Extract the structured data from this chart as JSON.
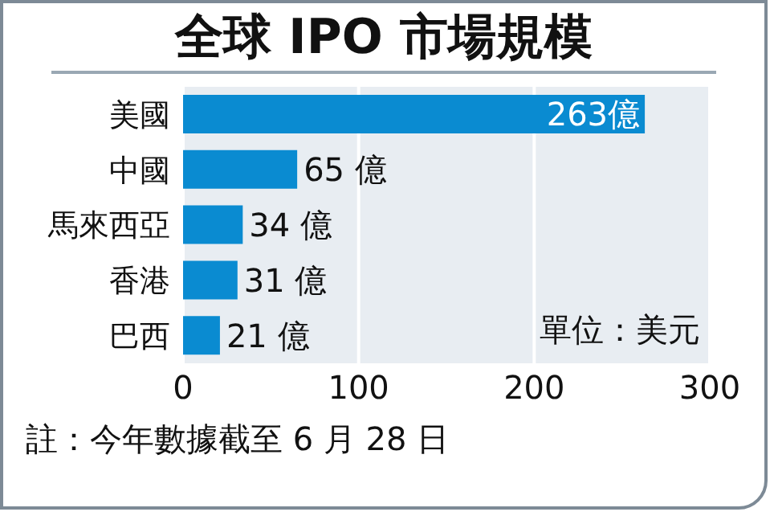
{
  "chart_data": {
    "type": "bar",
    "orientation": "horizontal",
    "title": "全球 IPO 市場規模",
    "categories": [
      "美國",
      "中國",
      "馬來西亞",
      "香港",
      "巴西"
    ],
    "values": [
      263,
      65,
      34,
      31,
      21
    ],
    "value_labels": [
      "263億",
      "65 億",
      "34 億",
      "31 億",
      "21 億"
    ],
    "color": "#0a8bd1",
    "xlim": [
      0,
      300
    ],
    "xticks": [
      0,
      100,
      200,
      300
    ],
    "grid": "x",
    "annotations": [
      "單位：美元",
      "註：今年數據截至 6 月 28 日"
    ]
  }
}
